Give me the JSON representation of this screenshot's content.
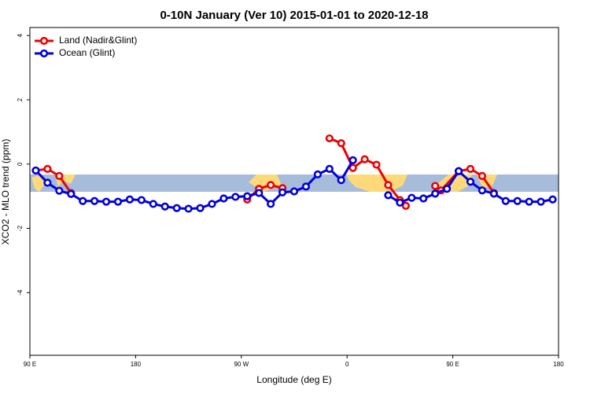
{
  "chart_data": {
    "type": "line",
    "title": "0-10N January (Ver 10)   2015-01-01 to 2020-12-18",
    "x_label": "Longitude (deg E)",
    "y_label": "XCO2 - MLO trend (ppm)",
    "xlim": [
      90,
      540
    ],
    "ylim": [
      -5.95,
      4.25
    ],
    "xticks": [
      {
        "value": 90,
        "label": "90 E"
      },
      {
        "value": 180,
        "label": "180"
      },
      {
        "value": 270,
        "label": "90 W"
      },
      {
        "value": 360,
        "label": "0"
      },
      {
        "value": 450,
        "label": "90 E"
      },
      {
        "value": 540,
        "label": "180"
      }
    ],
    "yticks": [
      -4,
      -2,
      0,
      2,
      4
    ],
    "legend": "top-left",
    "series": [
      {
        "name": "Land (Nadir&Glint)",
        "color": "#ee0000",
        "x": [
          95,
          105,
          115,
          125,
          135,
          275,
          285,
          295,
          305,
          315,
          345,
          355,
          365,
          375,
          385,
          395,
          405,
          410,
          420,
          435,
          440,
          455,
          465,
          475,
          485
        ],
        "values": [
          -0.2,
          -0.15,
          -0.37,
          -0.9,
          null,
          -1.1,
          -0.77,
          -0.65,
          -0.75,
          null,
          0.8,
          0.65,
          -0.12,
          0.15,
          -0.02,
          -0.65,
          -1.12,
          -1.3,
          null,
          -0.68,
          -0.82,
          -0.22,
          -0.15,
          -0.37,
          -0.9
        ]
      },
      {
        "name": "Ocean (Glint)",
        "color": "#0000dd",
        "x": [
          95,
          105,
          115,
          125,
          135,
          145,
          155,
          165,
          175,
          185,
          195,
          205,
          215,
          225,
          235,
          245,
          255,
          265,
          275,
          285,
          295,
          305,
          315,
          325,
          335,
          345,
          355,
          365,
          375,
          385,
          395,
          405,
          415,
          425,
          435,
          445,
          455,
          465,
          475,
          485,
          495,
          505,
          515,
          525,
          535
        ],
        "values": [
          -0.2,
          -0.58,
          -0.83,
          -0.93,
          -1.15,
          -1.15,
          -1.17,
          -1.17,
          -1.1,
          -1.12,
          -1.24,
          -1.32,
          -1.37,
          -1.39,
          -1.37,
          -1.24,
          -1.07,
          -1.02,
          -1.0,
          -0.9,
          -1.24,
          -0.88,
          -0.85,
          -0.7,
          -0.32,
          -0.15,
          -0.5,
          0.12,
          null,
          null,
          -0.97,
          -1.2,
          -1.05,
          -1.07,
          -0.92,
          -0.77,
          -0.22,
          -0.55,
          -0.82,
          -0.92,
          -1.15,
          -1.15,
          -1.17,
          -1.17,
          -1.1
        ]
      }
    ]
  }
}
